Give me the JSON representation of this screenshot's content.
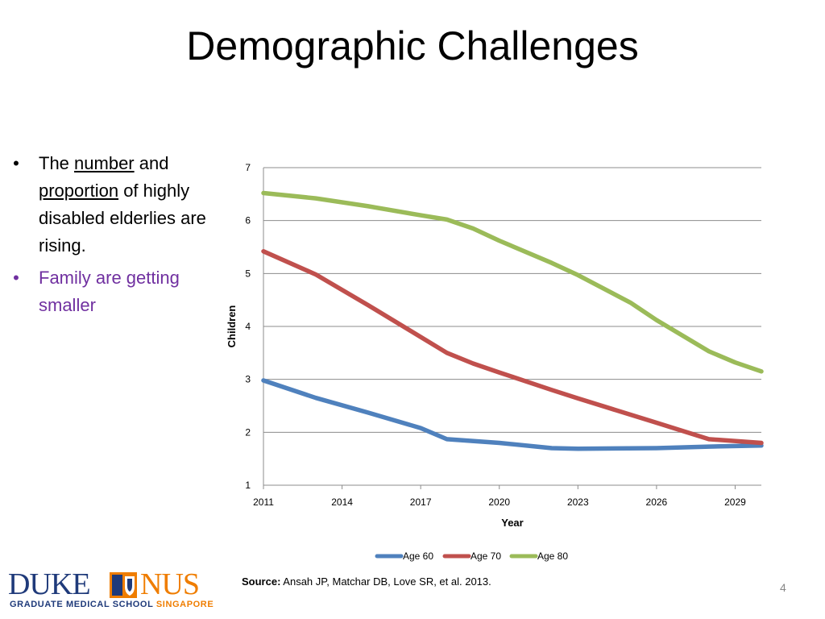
{
  "slide": {
    "title": "Demographic Challenges",
    "page_number": "4"
  },
  "bullets": {
    "b1_prefix": "The ",
    "b1_u1": "number",
    "b1_mid": " and ",
    "b1_u2": "proportion",
    "b1_suffix": " of highly disabled elderlies are rising.",
    "b2": "Family are getting smaller",
    "bullet_char": "•",
    "b2_color": "#7030a0"
  },
  "source": {
    "label": "Source:",
    "text": " Ansah JP, Matchar DB, Love SR, et al. 2013."
  },
  "logo": {
    "duke": "DUKE",
    "nus": "NUS",
    "sub_main": "GRADUATE MEDICAL SCHOOL ",
    "sub_accent": "SINGAPORE",
    "duke_color": "#1f3a7a",
    "nus_color": "#ef7d00"
  },
  "chart_data": {
    "type": "line",
    "xlabel": "Year",
    "ylabel": "Children",
    "ylim": [
      1,
      7
    ],
    "yticks": [
      1,
      2,
      3,
      4,
      5,
      6,
      7
    ],
    "xlim": [
      2011,
      2030
    ],
    "xticks": [
      2011,
      2014,
      2017,
      2020,
      2023,
      2026,
      2029
    ],
    "grid": true,
    "legend_position": "bottom",
    "series": [
      {
        "name": "Age 60",
        "color": "#4f81bd",
        "points": [
          [
            2011,
            2.98
          ],
          [
            2013,
            2.65
          ],
          [
            2015,
            2.37
          ],
          [
            2017,
            2.08
          ],
          [
            2018,
            1.87
          ],
          [
            2020,
            1.8
          ],
          [
            2022,
            1.7
          ],
          [
            2023,
            1.69
          ],
          [
            2026,
            1.7
          ],
          [
            2028,
            1.73
          ],
          [
            2030,
            1.75
          ]
        ]
      },
      {
        "name": "Age 70",
        "color": "#c0504d",
        "points": [
          [
            2011,
            5.42
          ],
          [
            2013,
            4.98
          ],
          [
            2015,
            4.4
          ],
          [
            2017,
            3.8
          ],
          [
            2018,
            3.5
          ],
          [
            2019,
            3.3
          ],
          [
            2020,
            3.13
          ],
          [
            2022,
            2.8
          ],
          [
            2023,
            2.64
          ],
          [
            2026,
            2.18
          ],
          [
            2028,
            1.87
          ],
          [
            2030,
            1.8
          ]
        ]
      },
      {
        "name": "Age 80",
        "color": "#9bbb59",
        "points": [
          [
            2011,
            6.52
          ],
          [
            2013,
            6.42
          ],
          [
            2015,
            6.27
          ],
          [
            2017,
            6.1
          ],
          [
            2018,
            6.02
          ],
          [
            2019,
            5.85
          ],
          [
            2020,
            5.62
          ],
          [
            2022,
            5.2
          ],
          [
            2023,
            4.97
          ],
          [
            2025,
            4.45
          ],
          [
            2026,
            4.12
          ],
          [
            2028,
            3.53
          ],
          [
            2029,
            3.32
          ],
          [
            2030,
            3.15
          ]
        ]
      }
    ]
  }
}
